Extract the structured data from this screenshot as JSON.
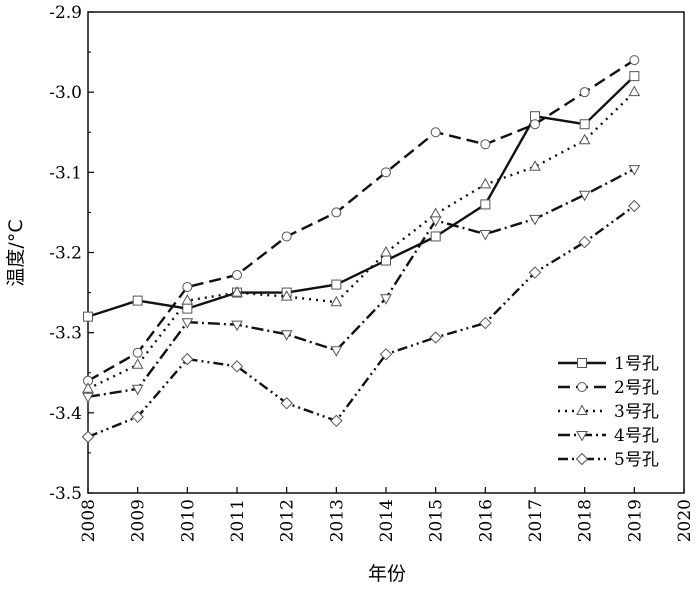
{
  "chart_data": {
    "type": "line",
    "xlabel": "年份",
    "ylabel": "温度/°C",
    "xlim": [
      2008,
      2020
    ],
    "ylim": [
      -3.5,
      -2.9
    ],
    "x_ticks": [
      "2008",
      "2009",
      "2010",
      "2011",
      "2012",
      "2013",
      "2014",
      "2015",
      "2016",
      "2017",
      "2018",
      "2019",
      "2020"
    ],
    "y_ticks": [
      "-2.9",
      "-3.0",
      "-3.1",
      "-3.2",
      "-3.3",
      "-3.4",
      "-3.5"
    ],
    "grid": false,
    "legend_position": "bottom-right",
    "x": [
      2008,
      2009,
      2010,
      2011,
      2012,
      2013,
      2014,
      2015,
      2016,
      2017,
      2018,
      2019
    ],
    "series": [
      {
        "name": "1号孔",
        "marker": "square",
        "dash": "solid",
        "values": [
          -3.28,
          -3.26,
          -3.27,
          -3.25,
          -3.25,
          -3.24,
          -3.21,
          -3.18,
          -3.14,
          -3.03,
          -3.04,
          -2.98
        ]
      },
      {
        "name": "2号孔",
        "marker": "circle",
        "dash": "long-dash",
        "values": [
          -3.36,
          -3.325,
          -3.243,
          -3.228,
          -3.18,
          -3.15,
          -3.1,
          -3.05,
          -3.065,
          -3.04,
          -3.0,
          -2.96
        ]
      },
      {
        "name": "3号孔",
        "marker": "triangle-up",
        "dash": "dot",
        "values": [
          -3.37,
          -3.34,
          -3.26,
          -3.25,
          -3.255,
          -3.262,
          -3.2,
          -3.152,
          -3.115,
          -3.093,
          -3.06,
          -3.0
        ]
      },
      {
        "name": "4号孔",
        "marker": "triangle-down",
        "dash": "dash-dot",
        "values": [
          -3.38,
          -3.37,
          -3.287,
          -3.29,
          -3.302,
          -3.322,
          -3.257,
          -3.16,
          -3.177,
          -3.158,
          -3.128,
          -3.096
        ]
      },
      {
        "name": "5号孔",
        "marker": "diamond",
        "dash": "dash-dot-dot",
        "values": [
          -3.43,
          -3.405,
          -3.333,
          -3.342,
          -3.388,
          -3.41,
          -3.327,
          -3.306,
          -3.288,
          -3.225,
          -3.187,
          -3.142
        ]
      }
    ]
  }
}
